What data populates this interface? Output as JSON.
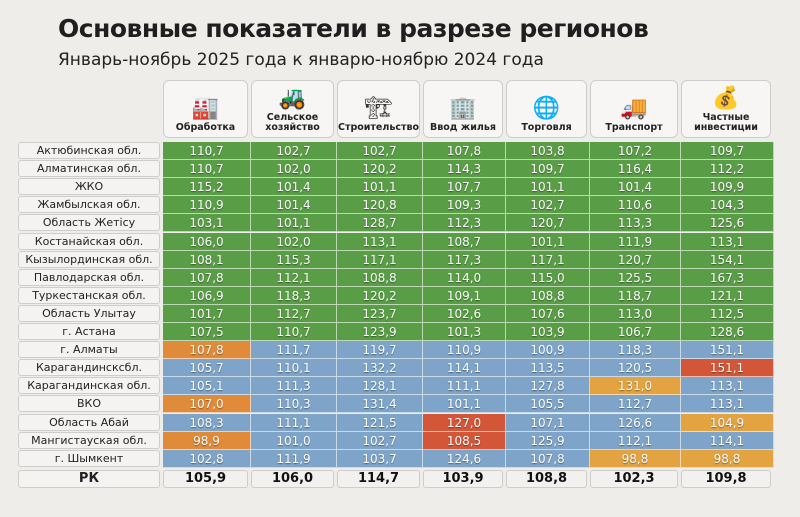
{
  "title": "Основные показатели в разрезе регионов",
  "subtitle": "Январь-ноябрь 2025 года к январю-ноябрю 2024 года",
  "columns": [
    {
      "label": "Обработка",
      "icon": "factory-icon",
      "glyph": "🏭"
    },
    {
      "label": "Сельское хозяйство",
      "icon": "tractor-icon",
      "glyph": "🚜"
    },
    {
      "label": "Строительство",
      "icon": "crane-icon",
      "glyph": "🏗"
    },
    {
      "label": "Ввод жилья",
      "icon": "building-icon",
      "glyph": "🏢"
    },
    {
      "label": "Торговля",
      "icon": "globe-trade-icon",
      "glyph": "🌐"
    },
    {
      "label": "Транспорт",
      "icon": "truck-icon",
      "glyph": "🚚"
    },
    {
      "label": "Частные инвестиции",
      "icon": "coins-plant-icon",
      "glyph": "💰"
    }
  ],
  "rows": [
    {
      "region": "Актюбинская обл.",
      "values": [
        "110,7",
        "102,7",
        "102,7",
        "107,8",
        "103,8",
        "107,2",
        "109,7"
      ],
      "status": [
        "g",
        "g",
        "g",
        "g",
        "g",
        "g",
        "g"
      ]
    },
    {
      "region": "Алматинская обл.",
      "values": [
        "110,7",
        "102,0",
        "120,2",
        "114,3",
        "109,7",
        "116,4",
        "112,2"
      ],
      "status": [
        "g",
        "g",
        "g",
        "g",
        "g",
        "g",
        "g"
      ]
    },
    {
      "region": "ЖКО",
      "values": [
        "115,2",
        "101,4",
        "101,1",
        "107,7",
        "101,1",
        "101,4",
        "109,9"
      ],
      "status": [
        "g",
        "g",
        "g",
        "g",
        "g",
        "g",
        "g"
      ]
    },
    {
      "region": "Жамбылская обл.",
      "values": [
        "110,9",
        "101,4",
        "120,8",
        "109,3",
        "102,7",
        "110,6",
        "104,3"
      ],
      "status": [
        "g",
        "g",
        "g",
        "g",
        "g",
        "g",
        "g"
      ]
    },
    {
      "region": "Область Жетісу",
      "values": [
        "103,1",
        "101,1",
        "128,7",
        "112,3",
        "120,7",
        "113,3",
        "125,6"
      ],
      "status": [
        "g",
        "g",
        "g",
        "g",
        "g",
        "g",
        "g"
      ]
    },
    {
      "region": "Костанайская обл.",
      "values": [
        "106,0",
        "102,0",
        "113,1",
        "108,7",
        "101,1",
        "111,9",
        "113,1"
      ],
      "status": [
        "g",
        "g",
        "g",
        "g",
        "g",
        "g",
        "g"
      ]
    },
    {
      "region": "Кызылординская обл.",
      "values": [
        "108,1",
        "115,3",
        "117,1",
        "117,3",
        "117,1",
        "120,7",
        "154,1"
      ],
      "status": [
        "g",
        "g",
        "g",
        "g",
        "g",
        "g",
        "g"
      ]
    },
    {
      "region": "Павлодарская обл.",
      "values": [
        "107,8",
        "112,1",
        "108,8",
        "114,0",
        "115,0",
        "125,5",
        "167,3"
      ],
      "status": [
        "g",
        "g",
        "g",
        "g",
        "g",
        "g",
        "g"
      ]
    },
    {
      "region": "Туркестанская обл.",
      "values": [
        "106,9",
        "118,3",
        "120,2",
        "109,1",
        "108,8",
        "118,7",
        "121,1"
      ],
      "status": [
        "g",
        "g",
        "g",
        "g",
        "g",
        "g",
        "g"
      ]
    },
    {
      "region": "Область Улытау",
      "values": [
        "101,7",
        "112,7",
        "123,7",
        "102,6",
        "107,6",
        "113,0",
        "112,5"
      ],
      "status": [
        "g",
        "g",
        "g",
        "g",
        "g",
        "g",
        "g"
      ]
    },
    {
      "region": "г. Астана",
      "values": [
        "107,5",
        "110,7",
        "123,9",
        "101,3",
        "103,9",
        "106,7",
        "128,6"
      ],
      "status": [
        "g",
        "g",
        "g",
        "g",
        "g",
        "g",
        "g"
      ]
    },
    {
      "region": "г. Алматы",
      "values": [
        "107,8",
        "111,7",
        "119,7",
        "110,9",
        "100,9",
        "118,3",
        "151,1"
      ],
      "status": [
        "o",
        "b",
        "b",
        "b",
        "b",
        "b",
        "b"
      ]
    },
    {
      "region": "Карагандинсксбл.",
      "values": [
        "105,7",
        "110,1",
        "132,2",
        "114,1",
        "113,5",
        "120,5",
        "151,1"
      ],
      "status": [
        "b",
        "b",
        "b",
        "b",
        "b",
        "b",
        "r"
      ]
    },
    {
      "region": "Карагандинская обл.",
      "values": [
        "105,1",
        "111,3",
        "128,1",
        "111,1",
        "127,8",
        "131,0",
        "113,1"
      ],
      "status": [
        "b",
        "b",
        "b",
        "b",
        "b",
        "y",
        "b"
      ]
    },
    {
      "region": "ВКО",
      "values": [
        "107,0",
        "110,3",
        "131,4",
        "101,1",
        "105,5",
        "112,7",
        "113,1"
      ],
      "status": [
        "o",
        "b",
        "b",
        "b",
        "b",
        "b",
        "b"
      ]
    },
    {
      "region": "Область Абай",
      "values": [
        "108,3",
        "111,1",
        "121,5",
        "127,0",
        "107,1",
        "126,6",
        "104,9"
      ],
      "status": [
        "b",
        "b",
        "b",
        "r",
        "b",
        "b",
        "y"
      ]
    },
    {
      "region": "Мангистауская обл.",
      "values": [
        "98,9",
        "101,0",
        "102,7",
        "108,5",
        "125,9",
        "112,1",
        "114,1"
      ],
      "status": [
        "o",
        "b",
        "b",
        "r",
        "b",
        "b",
        "b"
      ]
    },
    {
      "region": "г. Шымкент",
      "values": [
        "102,8",
        "111,9",
        "103,7",
        "124,6",
        "107,8",
        "98,8",
        "98,8"
      ],
      "status": [
        "b",
        "b",
        "b",
        "b",
        "b",
        "y",
        "y"
      ]
    }
  ],
  "total": {
    "region": "РК",
    "values": [
      "105,9",
      "106,0",
      "114,7",
      "103,9",
      "108,8",
      "102,3",
      "109,8"
    ]
  }
}
